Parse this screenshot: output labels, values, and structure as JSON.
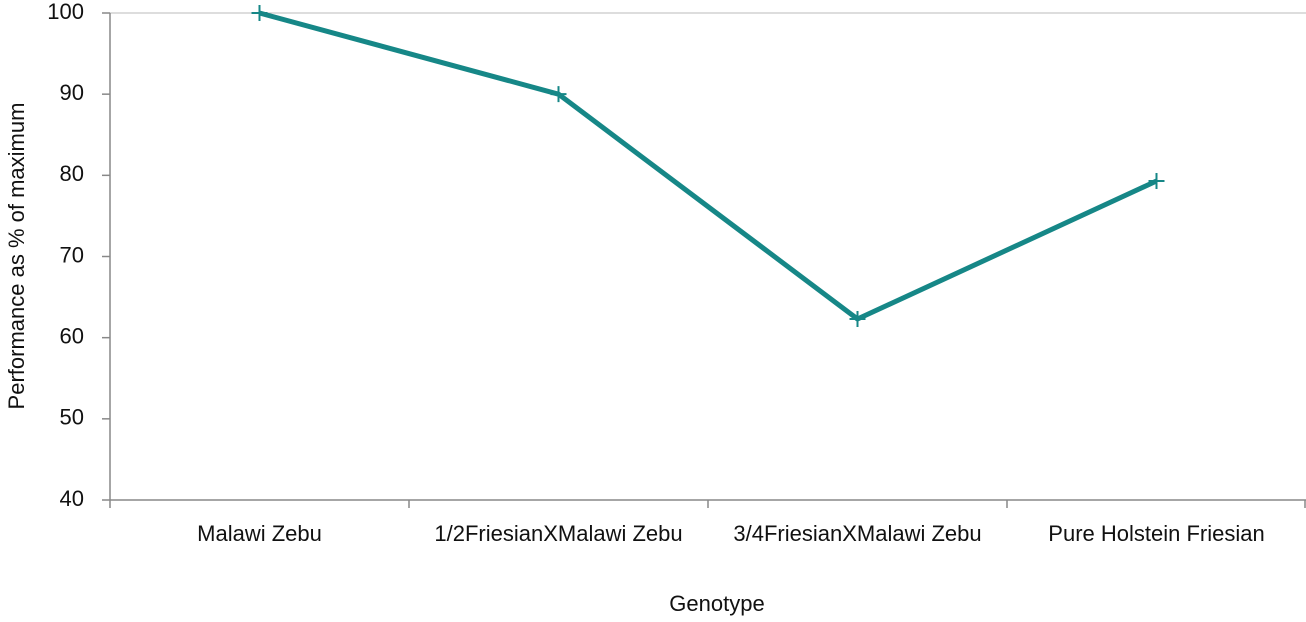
{
  "chart_data": {
    "type": "line",
    "x_label": "Genotype",
    "y_label": "Performance as % of maximum",
    "categories": [
      "Malawi Zebu",
      "1/2FriesianXMalawi Zebu",
      "3/4FriesianXMalawi Zebu",
      "Pure Holstein Friesian"
    ],
    "series": [
      {
        "name": null,
        "color": "#168787",
        "values": [
          100,
          90,
          62.3,
          79.3
        ]
      }
    ],
    "ylim": [
      40,
      100
    ],
    "yticks": [
      40,
      50,
      60,
      70,
      80,
      90,
      100
    ],
    "grid": false
  }
}
